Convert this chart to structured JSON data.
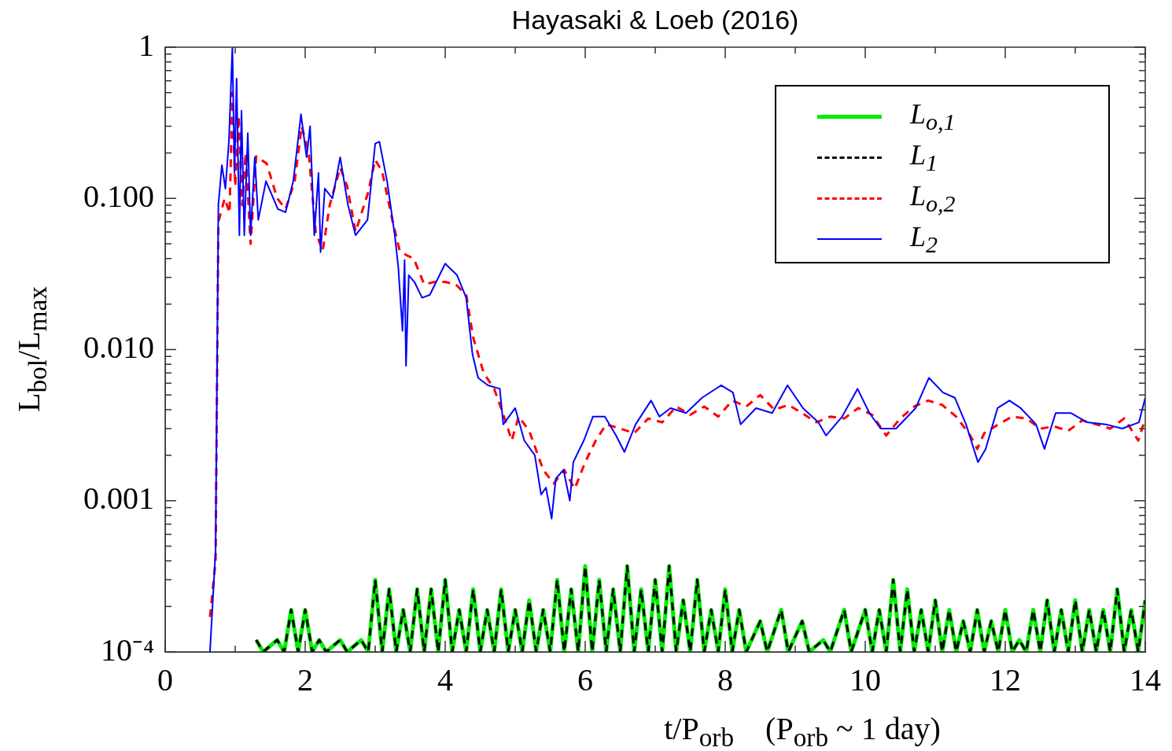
{
  "chart_data": {
    "type": "line",
    "title": "Hayasaki & Loeb (2016)",
    "xlabel": "t/P$_{orb}$    (P$_{orb}$ ~ 1 day)",
    "ylabel": "L$_{bol}$/L$_{max}$",
    "log": true,
    "legend": "top right",
    "marker": "none",
    "xlim": [
      0,
      14
    ],
    "xticks": [
      0,
      {
        "value": 1,
        "label": null
      },
      2,
      {
        "value": 3,
        "label": null
      },
      4,
      {
        "value": 5,
        "label": null
      },
      6,
      {
        "value": 7,
        "label": null
      },
      8,
      {
        "value": 9,
        "label": null
      },
      10,
      {
        "value": 11,
        "label": null
      },
      12,
      {
        "value": 13,
        "label": null
      },
      14
    ],
    "ylim": [
      0.0001,
      1
    ],
    "yticks": [
      {
        "value": 0.0001,
        "label": "10⁻⁴"
      },
      {
        "value": 0.0002,
        "label": null
      },
      {
        "value": 0.0003,
        "label": null
      },
      {
        "value": 0.0004,
        "label": null
      },
      {
        "value": 0.0005,
        "label": null
      },
      {
        "value": 0.0006,
        "label": null
      },
      {
        "value": 0.0007,
        "label": null
      },
      {
        "value": 0.0008,
        "label": null
      },
      {
        "value": 0.0009,
        "label": null
      },
      {
        "value": 0.001,
        "label": "0.001"
      },
      {
        "value": 0.002,
        "label": null
      },
      {
        "value": 0.003,
        "label": null
      },
      {
        "value": 0.004,
        "label": null
      },
      {
        "value": 0.005,
        "label": null
      },
      {
        "value": 0.006,
        "label": null
      },
      {
        "value": 0.007,
        "label": null
      },
      {
        "value": 0.008,
        "label": null
      },
      {
        "value": 0.009,
        "label": null
      },
      {
        "value": 0.01,
        "label": "0.010"
      },
      {
        "value": 0.02,
        "label": null
      },
      {
        "value": 0.03,
        "label": null
      },
      {
        "value": 0.04,
        "label": null
      },
      {
        "value": 0.05,
        "label": null
      },
      {
        "value": 0.06,
        "label": null
      },
      {
        "value": 0.07,
        "label": null
      },
      {
        "value": 0.08,
        "label": null
      },
      {
        "value": 0.09,
        "label": null
      },
      {
        "value": 0.1,
        "label": "0.100"
      },
      {
        "value": 0.2,
        "label": null
      },
      {
        "value": 0.3,
        "label": null
      },
      {
        "value": 0.4,
        "label": null
      },
      {
        "value": 0.5,
        "label": null
      },
      {
        "value": 0.6,
        "label": null
      },
      {
        "value": 0.7,
        "label": null
      },
      {
        "value": 0.8,
        "label": null
      },
      {
        "value": 0.9,
        "label": null
      },
      1
    ],
    "series": [
      {
        "name": "L$_{o,1}$",
        "color": "#00ee00",
        "line_style": "solid",
        "x": [
          1.3,
          1.4,
          1.6,
          1.7,
          1.8,
          1.9,
          2.0,
          2.1,
          2.2,
          2.3,
          2.5,
          2.6,
          2.8,
          2.9,
          3.0,
          3.1,
          3.2,
          3.3,
          3.4,
          3.5,
          3.6,
          3.7,
          3.8,
          3.9,
          4.0,
          4.1,
          4.2,
          4.3,
          4.4,
          4.5,
          4.6,
          4.7,
          4.8,
          4.9,
          5.0,
          5.1,
          5.2,
          5.3,
          5.4,
          5.5,
          5.6,
          5.7,
          5.8,
          5.9,
          6.0,
          6.1,
          6.2,
          6.3,
          6.4,
          6.5,
          6.6,
          6.7,
          6.8,
          6.9,
          7.0,
          7.1,
          7.2,
          7.3,
          7.4,
          7.5,
          7.6,
          7.7,
          7.8,
          7.9,
          8.0,
          8.1,
          8.2,
          8.3,
          8.5,
          8.6,
          8.8,
          8.9,
          9.1,
          9.2,
          9.4,
          9.5,
          9.7,
          9.8,
          10.0,
          10.1,
          10.2,
          10.3,
          10.4,
          10.5,
          10.6,
          10.7,
          10.8,
          10.9,
          11.0,
          11.1,
          11.2,
          11.3,
          11.4,
          11.5,
          11.6,
          11.7,
          11.8,
          11.9,
          12.0,
          12.1,
          12.2,
          12.3,
          12.4,
          12.5,
          12.6,
          12.7,
          12.8,
          12.9,
          13.0,
          13.1,
          13.2,
          13.3,
          13.4,
          13.5,
          13.6,
          13.7,
          13.8,
          13.9,
          14.0
        ],
        "values": [
          0.00012,
          0.0001,
          0.00012,
          0.0001,
          0.00019,
          0.0001,
          0.00019,
          0.0001,
          0.00012,
          0.0001,
          0.00012,
          0.0001,
          0.00012,
          0.0001,
          0.0003,
          0.0001,
          0.00026,
          0.0001,
          0.00019,
          0.0001,
          0.00026,
          0.0001,
          0.00026,
          0.0001,
          0.0003,
          0.0001,
          0.00019,
          0.0001,
          0.00026,
          0.0001,
          0.00019,
          0.0001,
          0.00026,
          0.0001,
          0.00019,
          0.0001,
          0.00022,
          0.0001,
          0.00019,
          0.0001,
          0.0003,
          0.0001,
          0.00026,
          0.0001,
          0.00037,
          0.0001,
          0.0003,
          0.0001,
          0.00026,
          0.0001,
          0.00037,
          0.0001,
          0.00026,
          0.0001,
          0.0003,
          0.0001,
          0.00037,
          0.0001,
          0.00022,
          0.0001,
          0.0003,
          0.0001,
          0.00019,
          0.0001,
          0.00026,
          0.0001,
          0.00019,
          0.0001,
          0.00016,
          0.0001,
          0.00019,
          0.0001,
          0.00016,
          0.0001,
          0.00012,
          0.0001,
          0.00019,
          0.0001,
          0.00019,
          0.0001,
          0.00019,
          0.0001,
          0.0003,
          0.0001,
          0.00026,
          0.0001,
          0.00019,
          0.0001,
          0.00022,
          0.0001,
          0.00019,
          0.0001,
          0.00016,
          0.0001,
          0.00019,
          0.0001,
          0.00016,
          0.0001,
          0.00019,
          0.0001,
          0.00012,
          0.0001,
          0.00019,
          0.0001,
          0.00022,
          0.0001,
          0.00019,
          0.0001,
          0.00022,
          0.0001,
          0.00019,
          0.0001,
          0.00019,
          0.0001,
          0.00026,
          0.0001,
          0.00019,
          0.0001,
          0.00022
        ]
      },
      {
        "name": "L$_{1}$",
        "color": "#000000",
        "line_style": "dashed",
        "x": [
          1.3,
          1.4,
          1.6,
          1.7,
          1.8,
          1.9,
          2.0,
          2.1,
          2.2,
          2.3,
          2.5,
          2.6,
          2.8,
          2.9,
          3.0,
          3.1,
          3.2,
          3.3,
          3.4,
          3.5,
          3.6,
          3.7,
          3.8,
          3.9,
          4.0,
          4.1,
          4.2,
          4.3,
          4.4,
          4.5,
          4.6,
          4.7,
          4.8,
          4.9,
          5.0,
          5.1,
          5.2,
          5.3,
          5.4,
          5.5,
          5.6,
          5.7,
          5.8,
          5.9,
          6.0,
          6.1,
          6.2,
          6.3,
          6.4,
          6.5,
          6.6,
          6.7,
          6.8,
          6.9,
          7.0,
          7.1,
          7.2,
          7.3,
          7.4,
          7.5,
          7.6,
          7.7,
          7.8,
          7.9,
          8.0,
          8.1,
          8.2,
          8.3,
          8.5,
          8.6,
          8.8,
          8.9,
          9.1,
          9.2,
          9.4,
          9.5,
          9.7,
          9.8,
          10.0,
          10.1,
          10.2,
          10.3,
          10.4,
          10.5,
          10.6,
          10.7,
          10.8,
          10.9,
          11.0,
          11.1,
          11.2,
          11.3,
          11.4,
          11.5,
          11.6,
          11.7,
          11.8,
          11.9,
          12.0,
          12.1,
          12.2,
          12.3,
          12.4,
          12.5,
          12.6,
          12.7,
          12.8,
          12.9,
          13.0,
          13.1,
          13.2,
          13.3,
          13.4,
          13.5,
          13.6,
          13.7,
          13.8,
          13.9,
          14.0
        ],
        "values": [
          0.00012,
          0.0001,
          0.00012,
          0.0001,
          0.00019,
          0.0001,
          0.00019,
          0.0001,
          0.00012,
          0.0001,
          0.00012,
          0.0001,
          0.00012,
          0.0001,
          0.0003,
          0.0001,
          0.00026,
          0.0001,
          0.00019,
          0.0001,
          0.00026,
          0.0001,
          0.00026,
          0.0001,
          0.0003,
          0.0001,
          0.00019,
          0.0001,
          0.00026,
          0.0001,
          0.00019,
          0.0001,
          0.00026,
          0.0001,
          0.00019,
          0.0001,
          0.00022,
          0.0001,
          0.00019,
          0.0001,
          0.0003,
          0.0001,
          0.00026,
          0.0001,
          0.00037,
          0.0001,
          0.0003,
          0.0001,
          0.00026,
          0.0001,
          0.00037,
          0.0001,
          0.00026,
          0.0001,
          0.0003,
          0.0001,
          0.00037,
          0.0001,
          0.00022,
          0.0001,
          0.0003,
          0.0001,
          0.00019,
          0.0001,
          0.00026,
          0.0001,
          0.00019,
          0.0001,
          0.00016,
          0.0001,
          0.00019,
          0.0001,
          0.00016,
          0.0001,
          0.00012,
          0.0001,
          0.00019,
          0.0001,
          0.00019,
          0.0001,
          0.00019,
          0.0001,
          0.0003,
          0.0001,
          0.00026,
          0.0001,
          0.00019,
          0.0001,
          0.00022,
          0.0001,
          0.00019,
          0.0001,
          0.00016,
          0.0001,
          0.00019,
          0.0001,
          0.00016,
          0.0001,
          0.00019,
          0.0001,
          0.00012,
          0.0001,
          0.00019,
          0.0001,
          0.00022,
          0.0001,
          0.00019,
          0.0001,
          0.00022,
          0.0001,
          0.00019,
          0.0001,
          0.00019,
          0.0001,
          0.00026,
          0.0001,
          0.00019,
          0.0001,
          0.00022
        ]
      },
      {
        "name": "L$_{o,2}$",
        "color": "#ff0000",
        "line_style": "dashed",
        "x": [
          0.64,
          0.72,
          0.76,
          0.85,
          0.92,
          0.96,
          1.0,
          1.05,
          1.1,
          1.15,
          1.22,
          1.3,
          1.45,
          1.6,
          1.72,
          1.85,
          1.95,
          2.05,
          2.15,
          2.25,
          2.35,
          2.5,
          2.6,
          2.72,
          2.9,
          3.0,
          3.1,
          3.25,
          3.35,
          3.45,
          3.55,
          3.7,
          3.85,
          4.0,
          4.15,
          4.3,
          4.4,
          4.55,
          4.7,
          4.85,
          4.95,
          5.05,
          5.2,
          5.4,
          5.55,
          5.7,
          5.85,
          6.0,
          6.15,
          6.3,
          6.5,
          6.7,
          6.9,
          7.1,
          7.3,
          7.5,
          7.7,
          7.9,
          8.1,
          8.3,
          8.5,
          8.7,
          8.9,
          9.1,
          9.3,
          9.5,
          9.7,
          9.9,
          10.1,
          10.3,
          10.5,
          10.7,
          10.9,
          11.1,
          11.3,
          11.5,
          11.6,
          11.7,
          11.9,
          12.1,
          12.3,
          12.5,
          12.7,
          12.9,
          13.1,
          13.3,
          13.5,
          13.7,
          13.9,
          14.0
        ],
        "values": [
          0.00017,
          0.0004,
          0.07,
          0.1,
          0.08,
          0.5,
          0.12,
          0.35,
          0.09,
          0.2,
          0.05,
          0.19,
          0.17,
          0.1,
          0.085,
          0.13,
          0.3,
          0.2,
          0.06,
          0.045,
          0.09,
          0.16,
          0.12,
          0.06,
          0.11,
          0.18,
          0.15,
          0.07,
          0.045,
          0.042,
          0.04,
          0.027,
          0.028,
          0.028,
          0.027,
          0.023,
          0.012,
          0.007,
          0.0055,
          0.0035,
          0.0025,
          0.0036,
          0.0029,
          0.0016,
          0.0013,
          0.0016,
          0.0012,
          0.0018,
          0.0025,
          0.0032,
          0.003,
          0.0028,
          0.0035,
          0.0033,
          0.0042,
          0.0037,
          0.0042,
          0.0036,
          0.0046,
          0.0042,
          0.005,
          0.004,
          0.0043,
          0.0038,
          0.0033,
          0.0036,
          0.0035,
          0.0041,
          0.0037,
          0.0027,
          0.0035,
          0.0042,
          0.0046,
          0.0043,
          0.0036,
          0.0027,
          0.0022,
          0.0028,
          0.0032,
          0.0036,
          0.0035,
          0.003,
          0.0031,
          0.0029,
          0.0034,
          0.0032,
          0.003,
          0.0035,
          0.0025,
          0.0035
        ]
      },
      {
        "name": "L$_{2}$",
        "color": "#0000ff",
        "line_style": "solid",
        "x": [
          0.64,
          0.72,
          0.76,
          0.81,
          0.86,
          0.91,
          0.96,
          0.99,
          1.02,
          1.06,
          1.09,
          1.13,
          1.18,
          1.22,
          1.28,
          1.33,
          1.44,
          1.61,
          1.72,
          1.83,
          1.94,
          2.02,
          2.07,
          2.13,
          2.19,
          2.22,
          2.28,
          2.39,
          2.5,
          2.61,
          2.72,
          2.89,
          3.0,
          3.06,
          3.17,
          3.28,
          3.33,
          3.39,
          3.42,
          3.44,
          3.48,
          3.56,
          3.67,
          3.78,
          4.0,
          4.17,
          4.3,
          4.39,
          4.47,
          4.61,
          4.78,
          4.83,
          5.0,
          5.13,
          5.28,
          5.37,
          5.44,
          5.52,
          5.58,
          5.69,
          5.78,
          5.83,
          5.98,
          6.11,
          6.28,
          6.44,
          6.56,
          6.72,
          6.94,
          7.06,
          7.22,
          7.44,
          7.67,
          7.94,
          8.11,
          8.22,
          8.44,
          8.67,
          8.89,
          9.11,
          9.33,
          9.44,
          9.67,
          9.89,
          10.06,
          10.22,
          10.44,
          10.72,
          10.91,
          11.11,
          11.28,
          11.44,
          11.61,
          11.72,
          11.89,
          12.06,
          12.22,
          12.44,
          12.56,
          12.72,
          12.94,
          13.17,
          13.44,
          13.67,
          13.91,
          14.0
        ],
        "values": [
          0.0001,
          0.00047,
          0.091,
          0.166,
          0.116,
          0.237,
          1.0,
          0.147,
          0.62,
          0.057,
          0.38,
          0.057,
          0.27,
          0.057,
          0.187,
          0.072,
          0.13,
          0.085,
          0.081,
          0.13,
          0.36,
          0.187,
          0.3,
          0.057,
          0.147,
          0.044,
          0.116,
          0.1,
          0.187,
          0.091,
          0.057,
          0.072,
          0.23,
          0.237,
          0.13,
          0.057,
          0.035,
          0.0133,
          0.039,
          0.0078,
          0.031,
          0.028,
          0.022,
          0.023,
          0.037,
          0.031,
          0.022,
          0.0093,
          0.0065,
          0.0058,
          0.0055,
          0.0032,
          0.0041,
          0.0025,
          0.002,
          0.0011,
          0.00122,
          0.00076,
          0.0014,
          0.0016,
          0.001,
          0.0018,
          0.0025,
          0.0036,
          0.0036,
          0.0027,
          0.0021,
          0.0032,
          0.0046,
          0.0036,
          0.0041,
          0.0038,
          0.0048,
          0.0058,
          0.0052,
          0.0032,
          0.0041,
          0.0038,
          0.0058,
          0.0041,
          0.0033,
          0.0027,
          0.0036,
          0.0055,
          0.0038,
          0.003,
          0.003,
          0.0041,
          0.0065,
          0.0052,
          0.0048,
          0.0032,
          0.0018,
          0.0022,
          0.0041,
          0.0046,
          0.0041,
          0.0032,
          0.0022,
          0.0038,
          0.0038,
          0.0033,
          0.0032,
          0.003,
          0.0033,
          0.0048
        ]
      }
    ]
  }
}
